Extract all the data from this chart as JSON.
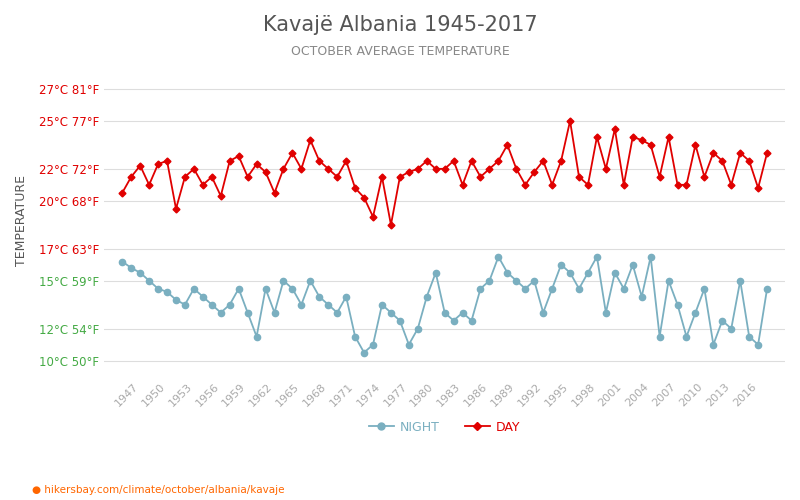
{
  "title": "Kavajë Albania 1945-2017",
  "subtitle": "OCTOBER AVERAGE TEMPERATURE",
  "ylabel": "TEMPERATURE",
  "footer": "hikersbay.com/climate/october/albania/kavaje",
  "years": [
    1945,
    1946,
    1947,
    1948,
    1949,
    1950,
    1951,
    1952,
    1953,
    1954,
    1955,
    1956,
    1957,
    1958,
    1959,
    1960,
    1961,
    1962,
    1963,
    1964,
    1965,
    1966,
    1967,
    1968,
    1969,
    1970,
    1971,
    1972,
    1973,
    1974,
    1975,
    1976,
    1977,
    1978,
    1979,
    1980,
    1981,
    1982,
    1983,
    1984,
    1985,
    1986,
    1987,
    1988,
    1989,
    1990,
    1991,
    1992,
    1993,
    1994,
    1995,
    1996,
    1997,
    1998,
    1999,
    2000,
    2001,
    2002,
    2003,
    2004,
    2005,
    2006,
    2007,
    2008,
    2009,
    2010,
    2011,
    2012,
    2013,
    2014,
    2015,
    2016,
    2017
  ],
  "day_temps": [
    20.5,
    21.5,
    22.2,
    21.0,
    22.3,
    22.5,
    19.5,
    21.5,
    22.0,
    21.0,
    21.5,
    20.3,
    22.5,
    22.8,
    21.5,
    22.3,
    21.8,
    20.5,
    22.0,
    23.0,
    22.0,
    23.8,
    22.5,
    22.0,
    21.5,
    22.5,
    20.8,
    20.2,
    19.0,
    21.5,
    18.5,
    21.5,
    21.8,
    22.0,
    22.5,
    22.0,
    22.0,
    22.5,
    21.0,
    22.5,
    21.5,
    22.0,
    22.5,
    23.5,
    22.0,
    21.0,
    21.8,
    22.5,
    21.0,
    22.5,
    25.0,
    21.5,
    21.0,
    24.0,
    22.0,
    24.5,
    21.0,
    24.0,
    23.8,
    23.5,
    21.5,
    24.0,
    21.0,
    21.0,
    23.5,
    21.5,
    23.0,
    22.5,
    21.0,
    23.0,
    22.5,
    20.8,
    23.0
  ],
  "night_temps": [
    16.2,
    15.8,
    15.5,
    15.0,
    14.5,
    14.3,
    13.8,
    13.5,
    14.5,
    14.0,
    13.5,
    13.0,
    13.5,
    14.5,
    13.0,
    11.5,
    14.5,
    13.0,
    15.0,
    14.5,
    13.5,
    15.0,
    14.0,
    13.5,
    13.0,
    14.0,
    11.5,
    10.5,
    11.0,
    13.5,
    13.0,
    12.5,
    11.0,
    12.0,
    14.0,
    15.5,
    13.0,
    12.5,
    13.0,
    12.5,
    14.5,
    15.0,
    16.5,
    15.5,
    15.0,
    14.5,
    15.0,
    13.0,
    14.5,
    16.0,
    15.5,
    14.5,
    15.5,
    16.5,
    13.0,
    15.5,
    14.5,
    16.0,
    14.0,
    16.5,
    11.5,
    15.0,
    13.5,
    11.5,
    13.0,
    14.5,
    11.0,
    12.5,
    12.0,
    15.0,
    11.5,
    11.0,
    14.5
  ],
  "day_color": "#e00000",
  "night_color": "#7aafc0",
  "title_color": "#555555",
  "subtitle_color": "#888888",
  "ylabel_color": "#555555",
  "tick_color_red": "#e00000",
  "tick_color_green": "#44aa44",
  "grid_color": "#dddddd",
  "bg_color": "#ffffff",
  "yticks_celsius": [
    10,
    12,
    15,
    17,
    20,
    22,
    25,
    27
  ],
  "yticks_fahrenheit": [
    50,
    54,
    59,
    63,
    68,
    72,
    77,
    81
  ],
  "ylim": [
    9.0,
    28.5
  ],
  "footer_color": "#ff6600",
  "legend_night_label": "NIGHT",
  "legend_day_label": "DAY"
}
